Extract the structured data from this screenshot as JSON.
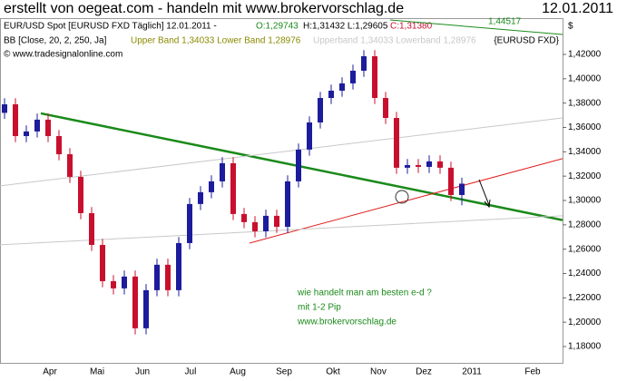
{
  "chart_data": {
    "type": "candlestick",
    "title": "erstellt von oegeat.com - handeln mit www.brokervorschlag.de",
    "date": "12.01.2011",
    "header": {
      "instrument": "EUR/USD Spot [EURUSD FXD  Täglich] 12.01.2011 -",
      "open": "O:1,29743",
      "high_low": "H:1,31432 L:1,29605",
      "close": "C:1,31380",
      "indicator": "BB [Close, 20, 2, 250, Ja]",
      "bands": "Upper Band 1,34033 Lower Band 1,28976",
      "bands2": "Upperband 1,34033 Lowerband 1,28976",
      "symbol": "{EURUSD FXD}",
      "copyright": "© www.tradesignalonline.com",
      "currency": "$"
    },
    "top_label": "1,44517",
    "annotations": [
      "wie handelt man am besten e-d ?",
      "mit 1-2 Pip",
      "www.brokervorschlag.de"
    ],
    "up_color": "#1c1c9c",
    "down_color": "#c8102e",
    "open": [
      1.372,
      1.379,
      1.3529,
      1.3567,
      1.3664,
      1.3529,
      1.338,
      1.3194,
      1.2896,
      1.2635,
      1.2337,
      1.2278,
      1.2375,
      1.195,
      1.2263,
      1.2472,
      1.2263,
      1.265,
      1.2971,
      1.3068,
      1.3157,
      1.3306,
      1.2889,
      1.2822,
      1.2747,
      1.2874,
      1.2784,
      1.3157,
      1.3418,
      1.3641,
      1.3842,
      1.3902,
      1.3962,
      1.4066,
      1.4185,
      1.3842,
      1.3678,
      1.3269,
      1.3291,
      1.3276,
      1.3321,
      1.3269,
      1.3045
    ],
    "high": [
      1.384,
      1.384,
      1.3617,
      1.3714,
      1.3714,
      1.3579,
      1.343,
      1.3244,
      1.2946,
      1.2685,
      1.2387,
      1.2425,
      1.2425,
      1.2313,
      1.2522,
      1.2522,
      1.27,
      1.3021,
      1.3118,
      1.3207,
      1.3356,
      1.3356,
      1.2939,
      1.2872,
      1.2924,
      1.2924,
      1.3207,
      1.3468,
      1.3691,
      1.3892,
      1.3952,
      1.4012,
      1.4116,
      1.4235,
      1.4235,
      1.3892,
      1.3728,
      1.3341,
      1.3341,
      1.3371,
      1.3371,
      1.3319,
      1.3188
    ],
    "low": [
      1.367,
      1.3479,
      1.3479,
      1.3517,
      1.3479,
      1.333,
      1.3144,
      1.2846,
      1.2585,
      1.2287,
      1.2228,
      1.2228,
      1.19,
      1.19,
      1.2213,
      1.2213,
      1.2213,
      1.26,
      1.2921,
      1.3018,
      1.3107,
      1.2839,
      1.2772,
      1.2697,
      1.2697,
      1.2734,
      1.2734,
      1.3107,
      1.3368,
      1.3591,
      1.3792,
      1.3852,
      1.3912,
      1.4016,
      1.3792,
      1.3628,
      1.3219,
      1.3219,
      1.3226,
      1.3226,
      1.3219,
      1.2995,
      1.2961
    ],
    "close": [
      1.379,
      1.3529,
      1.3567,
      1.3664,
      1.3529,
      1.338,
      1.3194,
      1.2896,
      1.2635,
      1.2337,
      1.2278,
      1.2375,
      1.195,
      1.2263,
      1.2472,
      1.2263,
      1.265,
      1.2971,
      1.3068,
      1.3157,
      1.3306,
      1.2889,
      1.2822,
      1.2747,
      1.2874,
      1.2784,
      1.3157,
      1.3418,
      1.3641,
      1.3842,
      1.3902,
      1.3962,
      1.4066,
      1.4185,
      1.3842,
      1.3678,
      1.3269,
      1.3291,
      1.3276,
      1.3321,
      1.3269,
      1.3045,
      1.3138
    ],
    "trendlines": [
      {
        "color": "#1a8a1a",
        "width": 2.5,
        "x": [
          3.33,
          51.25
        ],
        "y": [
          1.3716,
          1.2839
        ]
      },
      {
        "color": "#e02020",
        "width": 1,
        "x": [
          22.5,
          51.25
        ],
        "y": [
          1.265,
          1.3344
        ]
      },
      {
        "color": "#c8c8c8",
        "width": 1,
        "x": [
          -0.4167,
          51.25
        ],
        "y": [
          1.312,
          1.3678
        ]
      },
      {
        "color": "#c8c8c8",
        "width": 1,
        "x": [
          -0.4167,
          51.25
        ],
        "y": [
          1.2636,
          1.2874
        ]
      }
    ],
    "xlim": [
      -0.4167,
      51.25
    ],
    "xticks": [
      {
        "value": 4.17,
        "label": "Apr"
      },
      {
        "value": 8.5,
        "label": "Mai"
      },
      {
        "value": 12.67,
        "label": "Jun"
      },
      {
        "value": 17.08,
        "label": "Jul"
      },
      {
        "value": 21.42,
        "label": "Aug"
      },
      {
        "value": 25.67,
        "label": "Sep"
      },
      {
        "value": 30.17,
        "label": "Okt"
      },
      {
        "value": 34.33,
        "label": "Nov"
      },
      {
        "value": 38.5,
        "label": "Dez"
      },
      {
        "value": 42.92,
        "label": "2011"
      },
      {
        "value": 48.5,
        "label": "Feb"
      }
    ],
    "ylim": [
      1.1666,
      1.4498
    ],
    "yticks": [
      {
        "value": 1.18,
        "label": "1,18000"
      },
      {
        "value": 1.2,
        "label": "1,20000"
      },
      {
        "value": 1.22,
        "label": "1,22000"
      },
      {
        "value": 1.24,
        "label": "1,24000"
      },
      {
        "value": 1.26,
        "label": "1,26000"
      },
      {
        "value": 1.28,
        "label": "1,28000"
      },
      {
        "value": 1.3,
        "label": "1,30000"
      },
      {
        "value": 1.32,
        "label": "1,32000"
      },
      {
        "value": 1.34,
        "label": "1,34000"
      },
      {
        "value": 1.36,
        "label": "1,36000"
      },
      {
        "value": 1.38,
        "label": "1,38000"
      },
      {
        "value": 1.4,
        "label": "1,40000"
      },
      {
        "value": 1.42,
        "label": "1,42000"
      }
    ]
  }
}
